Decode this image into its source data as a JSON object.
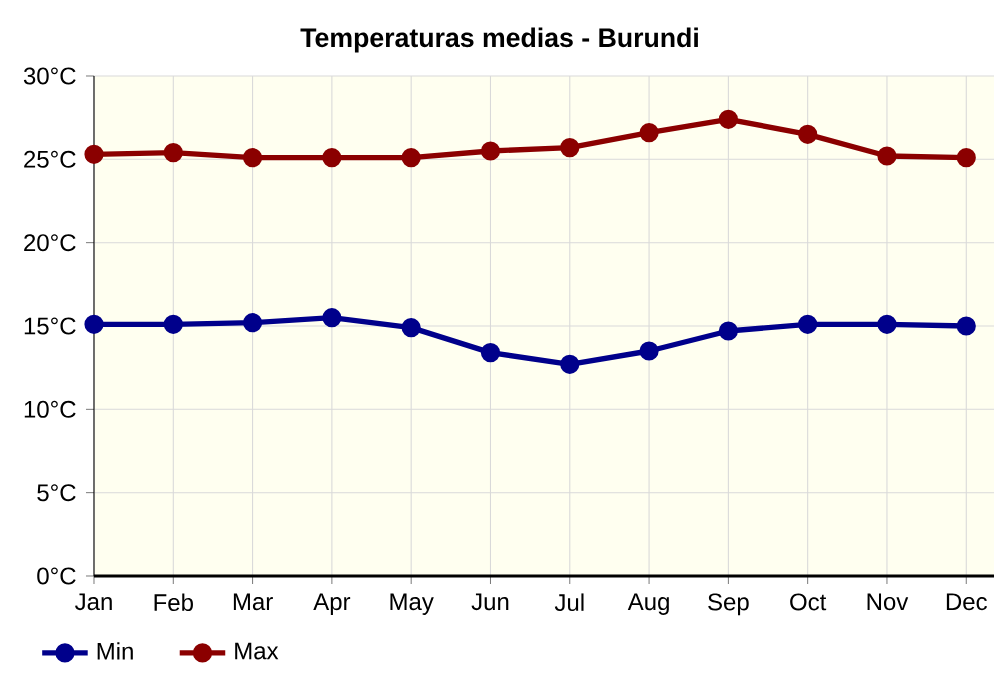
{
  "chart_data": {
    "type": "line",
    "title": "Temperaturas medias - Burundi",
    "categories": [
      "Jan",
      "Feb",
      "Mar",
      "Apr",
      "May",
      "Jun",
      "Jul",
      "Aug",
      "Sep",
      "Oct",
      "Nov",
      "Dec"
    ],
    "series": [
      {
        "name": "Min",
        "color": "#00008b",
        "values": [
          15.1,
          15.1,
          15.2,
          15.5,
          14.9,
          13.4,
          12.7,
          13.5,
          14.7,
          15.1,
          15.1,
          15.0
        ]
      },
      {
        "name": "Max",
        "color": "#8b0000",
        "values": [
          25.3,
          25.4,
          25.1,
          25.1,
          25.1,
          25.5,
          25.7,
          26.6,
          27.4,
          26.5,
          25.2,
          25.1
        ]
      }
    ],
    "ylim": [
      0,
      30
    ],
    "yticks": [
      {
        "value": 0,
        "label": "0°C"
      },
      {
        "value": 5,
        "label": "5°C"
      },
      {
        "value": 10,
        "label": "10°C"
      },
      {
        "value": 15,
        "label": "15°C"
      },
      {
        "value": 20,
        "label": "20°C"
      },
      {
        "value": 25,
        "label": "25°C"
      },
      {
        "value": 30,
        "label": "30°C"
      }
    ],
    "grid": true,
    "legend": "bottom left",
    "marker": "circle",
    "line_style": "solid"
  }
}
